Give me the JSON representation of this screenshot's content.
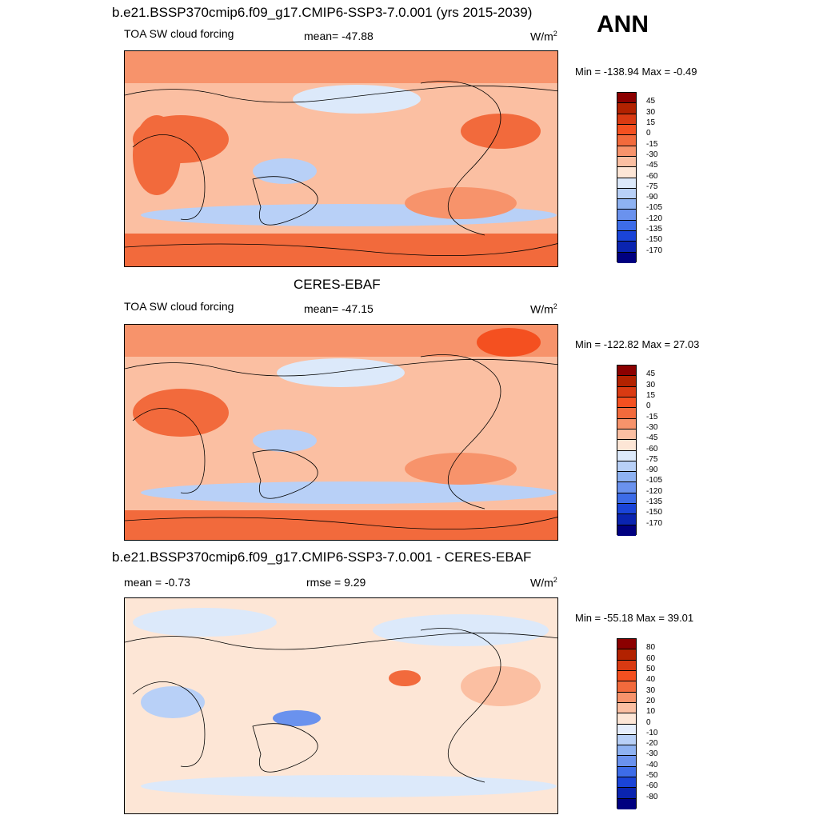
{
  "season": "ANN",
  "panels": [
    {
      "title": "b.e21.BSSP370cmip6.f09_g17.CMIP6-SSP3-7.0.001 (yrs 2015-2039)",
      "left_label": "TOA SW cloud forcing",
      "center_label": "mean= -47.88",
      "units": "W/m",
      "units_sup": "2",
      "minmax": "Min = -138.94 Max =  -0.49",
      "ticks": [
        "45",
        "30",
        "15",
        "0",
        "-15",
        "-30",
        "-45",
        "-60",
        "-75",
        "-90",
        "-105",
        "-120",
        "-135",
        "-150",
        "-170"
      ],
      "colors": [
        "#8b0000",
        "#b22200",
        "#d93a12",
        "#f45020",
        "#f26a3c",
        "#f7936b",
        "#fbbfa2",
        "#fde6d6",
        "#dce9fa",
        "#b8d0f7",
        "#8eb2f2",
        "#6a92ee",
        "#3d6ce8",
        "#1a44d8",
        "#0a24b0",
        "#000080"
      ]
    },
    {
      "title": "CERES-EBAF",
      "left_label": "TOA SW cloud forcing",
      "center_label": "mean= -47.15",
      "units": "W/m",
      "units_sup": "2",
      "minmax": "Min = -122.82 Max =  27.03",
      "ticks": [
        "45",
        "30",
        "15",
        "0",
        "-15",
        "-30",
        "-45",
        "-60",
        "-75",
        "-90",
        "-105",
        "-120",
        "-135",
        "-150",
        "-170"
      ],
      "colors": [
        "#8b0000",
        "#b22200",
        "#d93a12",
        "#f45020",
        "#f26a3c",
        "#f7936b",
        "#fbbfa2",
        "#fde6d6",
        "#dce9fa",
        "#b8d0f7",
        "#8eb2f2",
        "#6a92ee",
        "#3d6ce8",
        "#1a44d8",
        "#0a24b0",
        "#000080"
      ]
    },
    {
      "title": "b.e21.BSSP370cmip6.f09_g17.CMIP6-SSP3-7.0.001 - CERES-EBAF",
      "left_label": "mean =  -0.73",
      "center_label": "rmse =   9.29",
      "units": "W/m",
      "units_sup": "2",
      "minmax": "Min = -55.18 Max =  39.01",
      "ticks": [
        "80",
        "60",
        "50",
        "40",
        "30",
        "20",
        "10",
        "0",
        "-10",
        "-20",
        "-30",
        "-40",
        "-50",
        "-60",
        "-80"
      ],
      "colors": [
        "#8b0000",
        "#b22200",
        "#d93a12",
        "#f45020",
        "#f26a3c",
        "#f7936b",
        "#fbbfa2",
        "#fde6d6",
        "#e6eefc",
        "#b8d0f7",
        "#8eb2f2",
        "#6a92ee",
        "#3d6ce8",
        "#1a44d8",
        "#0a24b0",
        "#000080"
      ]
    }
  ]
}
